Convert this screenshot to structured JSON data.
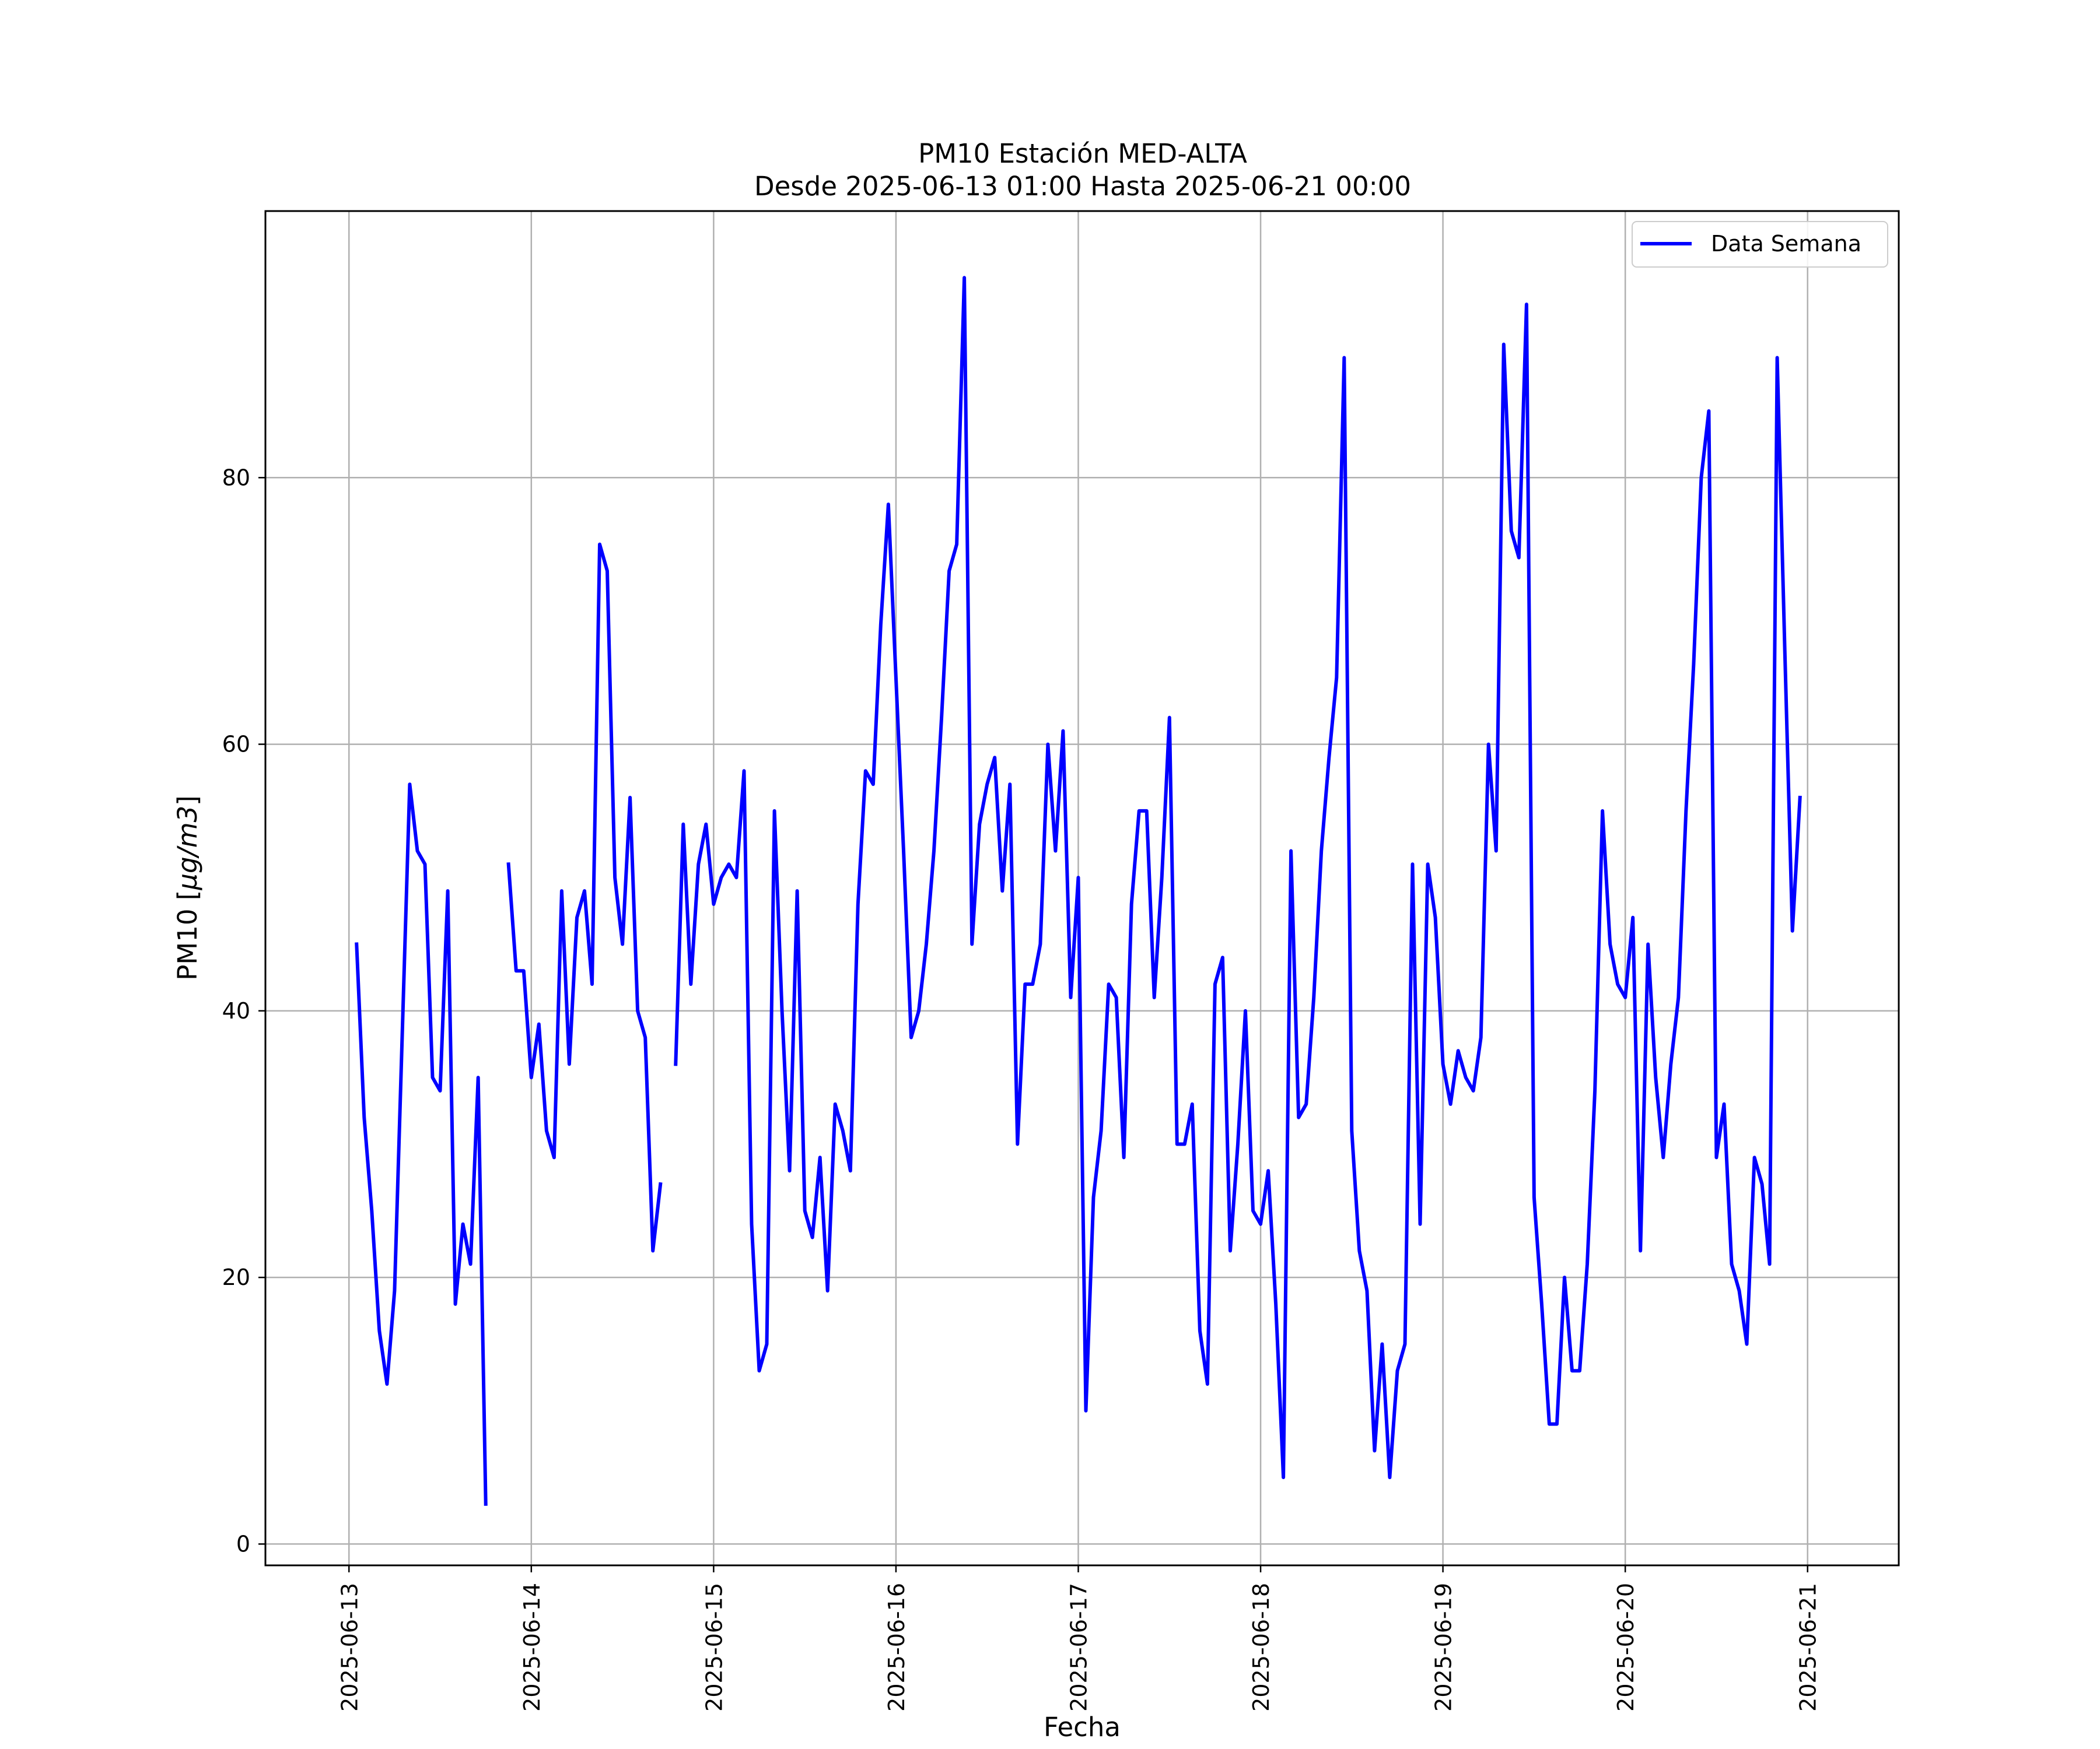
{
  "chart_data": {
    "type": "line",
    "title": "PM10 Estación MED-ALTA",
    "subtitle": "Desde 2025-06-13 01:00 Hasta 2025-06-21 00:00",
    "xlabel": "Fecha",
    "ylabel_prefix": "PM10 [",
    "ylabel_unit": "µg/m3",
    "ylabel_suffix": "]",
    "x_start": "2025-06-13 01:00",
    "x_end": "2025-06-21 00:00",
    "xlim": [
      "2025-06-12 13:00",
      "2025-06-21 12:00"
    ],
    "ylim": [
      -1.6,
      100
    ],
    "x_ticks": [
      "2025-06-13",
      "2025-06-14",
      "2025-06-15",
      "2025-06-16",
      "2025-06-17",
      "2025-06-18",
      "2025-06-19",
      "2025-06-20",
      "2025-06-21"
    ],
    "y_ticks": [
      0,
      20,
      40,
      60,
      80
    ],
    "grid": true,
    "legend_position": "top-right",
    "colors": {
      "series": "#0000ff",
      "grid": "#b0b0b0",
      "axes": "#000000"
    },
    "series": [
      {
        "name": "Data Semana",
        "values": [
          45,
          32,
          25,
          16,
          12,
          19,
          38,
          57,
          52,
          51,
          35,
          34,
          49,
          18,
          24,
          21,
          35,
          3,
          null,
          null,
          51,
          43,
          43,
          35,
          39,
          31,
          29,
          49,
          36,
          47,
          49,
          42,
          75,
          73,
          50,
          45,
          56,
          40,
          38,
          22,
          27,
          null,
          36,
          54,
          42,
          51,
          54,
          48,
          50,
          51,
          50,
          58,
          24,
          13,
          15,
          55,
          40,
          28,
          49,
          25,
          23,
          29,
          19,
          33,
          31,
          28,
          48,
          58,
          57,
          69,
          78,
          65,
          52,
          38,
          40,
          45,
          52,
          62,
          73,
          75,
          95,
          45,
          54,
          57,
          59,
          49,
          57,
          30,
          42,
          42,
          45,
          60,
          52,
          61,
          41,
          50,
          10,
          26,
          31,
          42,
          41,
          29,
          48,
          55,
          55,
          41,
          50,
          62,
          30,
          30,
          33,
          16,
          12,
          42,
          44,
          22,
          30,
          40,
          25,
          24,
          28,
          18,
          5,
          52,
          32,
          33,
          41,
          52,
          59,
          65,
          89,
          31,
          22,
          19,
          7,
          15,
          5,
          13,
          15,
          51,
          24,
          51,
          47,
          36,
          33,
          37,
          35,
          34,
          38,
          60,
          52,
          90,
          76,
          74,
          93,
          26,
          18,
          9,
          9,
          20,
          13,
          13,
          21,
          34,
          55,
          45,
          42,
          41,
          47,
          22,
          45,
          35,
          29,
          36,
          41,
          55,
          66,
          80,
          85,
          29,
          33,
          21,
          19,
          15,
          29,
          27,
          21,
          89,
          67,
          46,
          56
        ]
      }
    ]
  }
}
